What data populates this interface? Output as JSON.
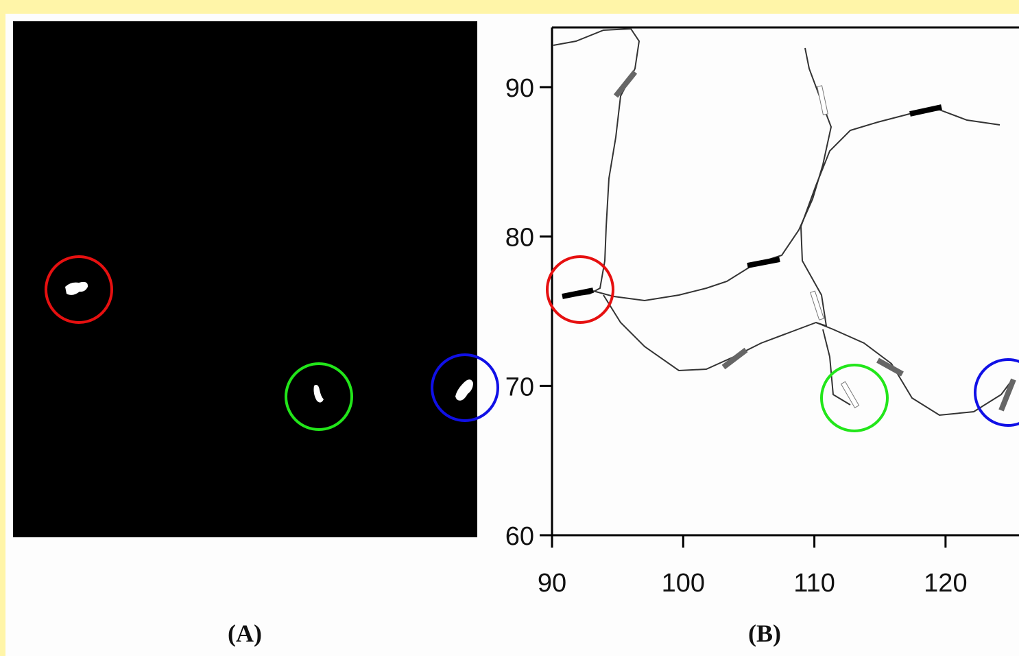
{
  "panel_a": {
    "label": "(A)"
  },
  "panel_b": {
    "label": "(B)",
    "xlim": [
      90,
      125.6
    ],
    "ylim": [
      60,
      94
    ],
    "xticks": [
      90,
      100,
      110,
      120
    ],
    "yticks": [
      60,
      70,
      80,
      90
    ]
  }
}
